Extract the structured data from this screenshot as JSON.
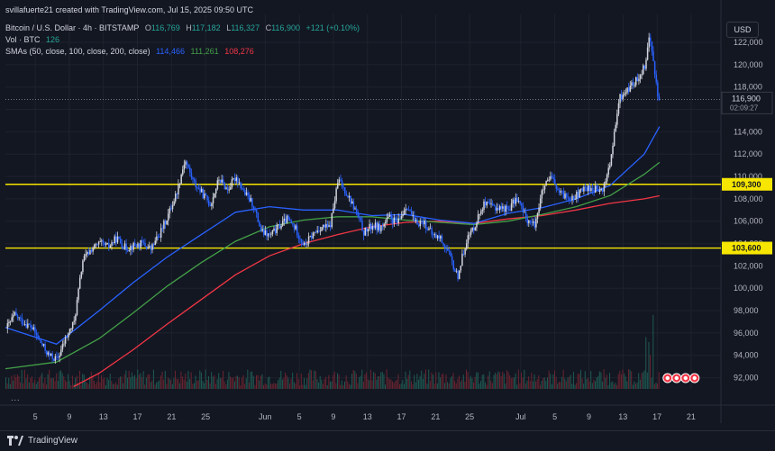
{
  "header": {
    "created_by": "svillafuerte21 created with TradingView.com, Jul 15, 2025 09:50 UTC",
    "symbol": "Bitcoin / U.S. Dollar · 4h · BITSTAMP",
    "ohlc": {
      "o_label": "O",
      "o": "116,769",
      "h_label": "H",
      "h": "117,182",
      "l_label": "L",
      "l": "116,327",
      "c_label": "C",
      "c": "116,900",
      "chg": "+121 (+0.10%)"
    },
    "vol_label": "Vol · BTC",
    "vol_value": "126",
    "sma_label": "SMAs (50, close, 100, close, 200, close)",
    "sma50": "114,466",
    "sma100": "111,261",
    "sma200": "108,276"
  },
  "currency": "USD",
  "more_dots": "...",
  "brand": "TradingView",
  "colors": {
    "bg": "#131722",
    "grid": "#1e222d",
    "up": "#d1d4dc",
    "down": "#2962ff",
    "sma50": "#2962ff",
    "sma100": "#43a047",
    "sma200": "#f23645",
    "level": "#f7e600"
  },
  "chart_data": {
    "type": "candlestick",
    "title": "Bitcoin / U.S. Dollar · 4h · BITSTAMP",
    "ylim": [
      91000,
      124500
    ],
    "y_ticks": [
      92000,
      94000,
      96000,
      98000,
      100000,
      102000,
      104000,
      106000,
      108000,
      110000,
      112000,
      114000,
      116000,
      118000,
      120000,
      122000
    ],
    "y_tick_labels": [
      "92,000",
      "94,000",
      "96,000",
      "98,000",
      "100,000",
      "102,000",
      "104,000",
      "106,000",
      "108,000",
      "110,000",
      "112,000",
      "114,000",
      "116,000",
      "118,000",
      "120,000",
      "122,000"
    ],
    "x_ticks": [
      {
        "label": "5",
        "day": 5
      },
      {
        "label": "9",
        "day": 9
      },
      {
        "label": "13",
        "day": 13
      },
      {
        "label": "17",
        "day": 17
      },
      {
        "label": "21",
        "day": 21
      },
      {
        "label": "25",
        "day": 25
      },
      {
        "label": "Jun",
        "day": 32
      },
      {
        "label": "5",
        "day": 36
      },
      {
        "label": "9",
        "day": 40
      },
      {
        "label": "13",
        "day": 44
      },
      {
        "label": "17",
        "day": 48
      },
      {
        "label": "21",
        "day": 52
      },
      {
        "label": "25",
        "day": 56
      },
      {
        "label": "Jul",
        "day": 62
      },
      {
        "label": "5",
        "day": 66
      },
      {
        "label": "9",
        "day": 70
      },
      {
        "label": "13",
        "day": 74
      },
      {
        "label": "17",
        "day": 78
      },
      {
        "label": "21",
        "day": 82
      }
    ],
    "x_range_days": [
      1.5,
      85.5
    ],
    "horizontal_levels": [
      {
        "value": 109300,
        "label": "109,300"
      },
      {
        "value": 103600,
        "label": "103,600"
      }
    ],
    "last_price": {
      "value": 116900,
      "label": "116,900",
      "countdown": "02:09:27"
    },
    "close_path": [
      [
        1.5,
        96400
      ],
      [
        2.5,
        97600
      ],
      [
        3.5,
        97000
      ],
      [
        4.5,
        96500
      ],
      [
        5.5,
        95200
      ],
      [
        6.5,
        94000
      ],
      [
        7.5,
        93600
      ],
      [
        8.5,
        95500
      ],
      [
        9.5,
        97000
      ],
      [
        10.5,
        102500
      ],
      [
        11.5,
        103500
      ],
      [
        12.5,
        104000
      ],
      [
        13.5,
        103700
      ],
      [
        14.5,
        104500
      ],
      [
        15.5,
        103600
      ],
      [
        16.5,
        103800
      ],
      [
        17.5,
        104000
      ],
      [
        18.5,
        103500
      ],
      [
        19.5,
        104800
      ],
      [
        20.5,
        106500
      ],
      [
        21.5,
        108500
      ],
      [
        22.5,
        111500
      ],
      [
        23.5,
        109500
      ],
      [
        24.5,
        108500
      ],
      [
        25.5,
        107500
      ],
      [
        26.5,
        109800
      ],
      [
        27.5,
        108800
      ],
      [
        28.5,
        110000
      ],
      [
        29.5,
        108500
      ],
      [
        30.5,
        107500
      ],
      [
        31.5,
        105000
      ],
      [
        32.5,
        104700
      ],
      [
        33.5,
        105500
      ],
      [
        34.5,
        106200
      ],
      [
        35.5,
        105300
      ],
      [
        36.5,
        103800
      ],
      [
        37.5,
        104800
      ],
      [
        38.5,
        105500
      ],
      [
        39.5,
        105400
      ],
      [
        40.5,
        109700
      ],
      [
        41.5,
        108500
      ],
      [
        42.5,
        107000
      ],
      [
        43.5,
        105000
      ],
      [
        44.5,
        105600
      ],
      [
        45.5,
        105400
      ],
      [
        46.5,
        106300
      ],
      [
        47.5,
        105800
      ],
      [
        48.5,
        107500
      ],
      [
        49.5,
        105800
      ],
      [
        50.5,
        106000
      ],
      [
        51.5,
        104800
      ],
      [
        52.5,
        104500
      ],
      [
        53.5,
        103000
      ],
      [
        54.5,
        101000
      ],
      [
        55.5,
        104200
      ],
      [
        56.5,
        105600
      ],
      [
        57.5,
        107500
      ],
      [
        58.5,
        107300
      ],
      [
        59.5,
        107200
      ],
      [
        60.5,
        107100
      ],
      [
        61.5,
        108100
      ],
      [
        62.5,
        106300
      ],
      [
        63.5,
        105600
      ],
      [
        64.5,
        108800
      ],
      [
        65.5,
        109900
      ],
      [
        66.5,
        108400
      ],
      [
        67.5,
        108200
      ],
      [
        68.5,
        108300
      ],
      [
        69.5,
        109000
      ],
      [
        70.5,
        108900
      ],
      [
        71.5,
        108600
      ],
      [
        72.5,
        111500
      ],
      [
        73.5,
        117000
      ],
      [
        74.5,
        117800
      ],
      [
        75.5,
        118600
      ],
      [
        76.5,
        120000
      ],
      [
        77.0,
        122500
      ],
      [
        77.5,
        120600
      ],
      [
        78.0,
        117000
      ],
      [
        78.3,
        116900
      ]
    ],
    "sma50": [
      [
        1.5,
        96500
      ],
      [
        7.5,
        95000
      ],
      [
        12.5,
        98000
      ],
      [
        16.5,
        100500
      ],
      [
        20.5,
        102800
      ],
      [
        24.5,
        104800
      ],
      [
        28.5,
        106800
      ],
      [
        32.5,
        107300
      ],
      [
        36.5,
        107000
      ],
      [
        40.5,
        107000
      ],
      [
        44.5,
        106500
      ],
      [
        48.5,
        106600
      ],
      [
        52.5,
        106100
      ],
      [
        56.5,
        105800
      ],
      [
        60.5,
        106700
      ],
      [
        64.5,
        107200
      ],
      [
        68.5,
        108000
      ],
      [
        72.5,
        109200
      ],
      [
        76.5,
        112000
      ],
      [
        78.3,
        114466
      ]
    ],
    "sma100": [
      [
        1.5,
        92800
      ],
      [
        7.5,
        93400
      ],
      [
        12.5,
        95500
      ],
      [
        16.5,
        97800
      ],
      [
        20.5,
        100200
      ],
      [
        24.5,
        102300
      ],
      [
        28.5,
        104200
      ],
      [
        32.5,
        105500
      ],
      [
        36.5,
        106100
      ],
      [
        40.5,
        106400
      ],
      [
        44.5,
        106400
      ],
      [
        48.5,
        106100
      ],
      [
        52.5,
        105900
      ],
      [
        56.5,
        105700
      ],
      [
        60.5,
        106000
      ],
      [
        64.5,
        106600
      ],
      [
        68.5,
        107300
      ],
      [
        72.5,
        108300
      ],
      [
        76.5,
        110200
      ],
      [
        78.3,
        111261
      ]
    ],
    "sma200": [
      [
        9.5,
        91200
      ],
      [
        12.5,
        92400
      ],
      [
        16.5,
        94500
      ],
      [
        20.5,
        96800
      ],
      [
        24.5,
        99000
      ],
      [
        28.5,
        101200
      ],
      [
        32.5,
        102900
      ],
      [
        36.5,
        104000
      ],
      [
        40.5,
        104800
      ],
      [
        44.5,
        105500
      ],
      [
        48.5,
        105900
      ],
      [
        52.5,
        106000
      ],
      [
        56.5,
        105800
      ],
      [
        60.5,
        106200
      ],
      [
        64.5,
        106500
      ],
      [
        68.5,
        107000
      ],
      [
        72.5,
        107600
      ],
      [
        76.5,
        108000
      ],
      [
        78.3,
        108276
      ]
    ],
    "volume_note": "Volume histogram along the bottom; spike near Jul 14"
  }
}
